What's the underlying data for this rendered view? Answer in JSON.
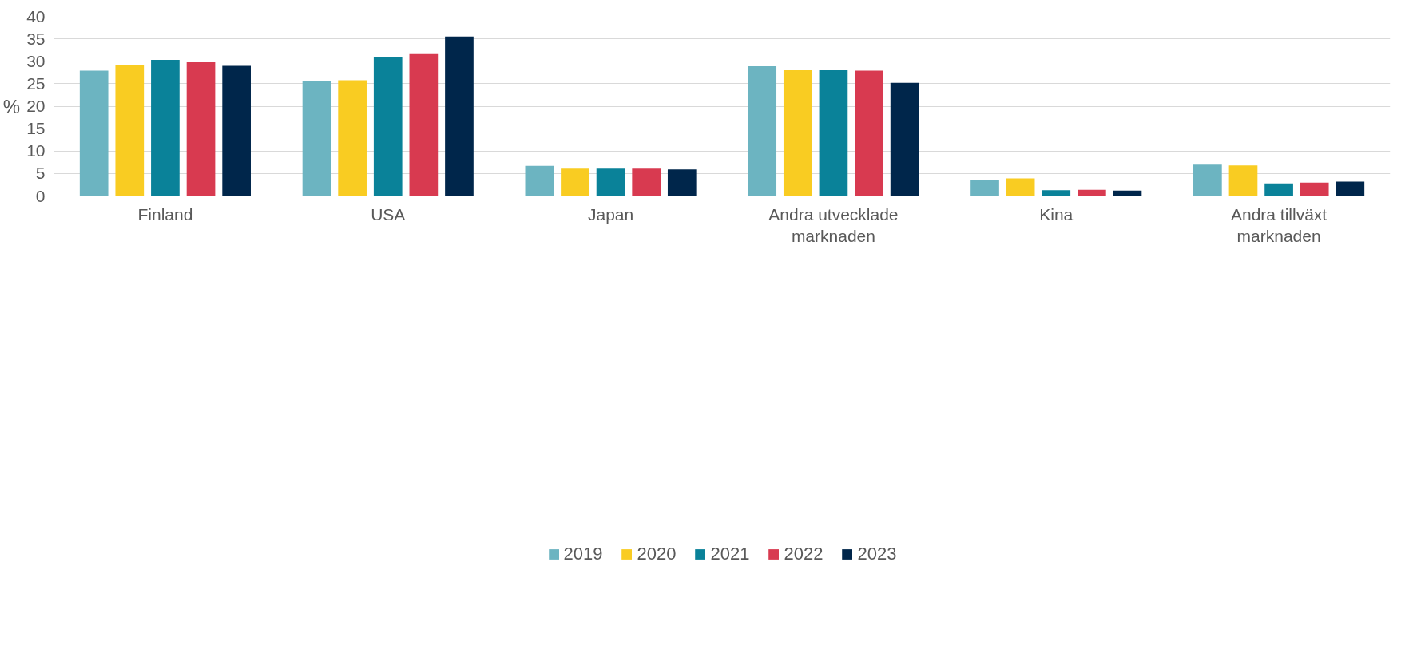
{
  "chart_data": {
    "type": "bar",
    "ylabel": "%",
    "categories": [
      "Finland",
      "USA",
      "Japan",
      "Andra utvecklade\nmarknaden",
      "Kina",
      "Andra tillväxt\nmarknaden"
    ],
    "series": [
      {
        "name": "2019",
        "color": "#6cb4c1",
        "values": [
          27.9,
          25.7,
          6.7,
          28.9,
          3.6,
          7.0
        ]
      },
      {
        "name": "2020",
        "color": "#f9cc22",
        "values": [
          29.1,
          25.8,
          6.1,
          28.0,
          3.9,
          6.8
        ]
      },
      {
        "name": "2021",
        "color": "#0a8299",
        "values": [
          30.3,
          31.0,
          6.1,
          28.0,
          1.3,
          2.8
        ]
      },
      {
        "name": "2022",
        "color": "#d83a50",
        "values": [
          29.8,
          31.6,
          6.1,
          27.9,
          1.4,
          3.0
        ]
      },
      {
        "name": "2023",
        "color": "#00264b",
        "values": [
          29.0,
          35.5,
          5.9,
          25.2,
          1.2,
          3.2
        ]
      }
    ],
    "ylim": [
      0,
      40
    ],
    "yticks": [
      0,
      5,
      10,
      15,
      20,
      25,
      30,
      35,
      40
    ],
    "grid": "y",
    "legend": "bottom"
  }
}
